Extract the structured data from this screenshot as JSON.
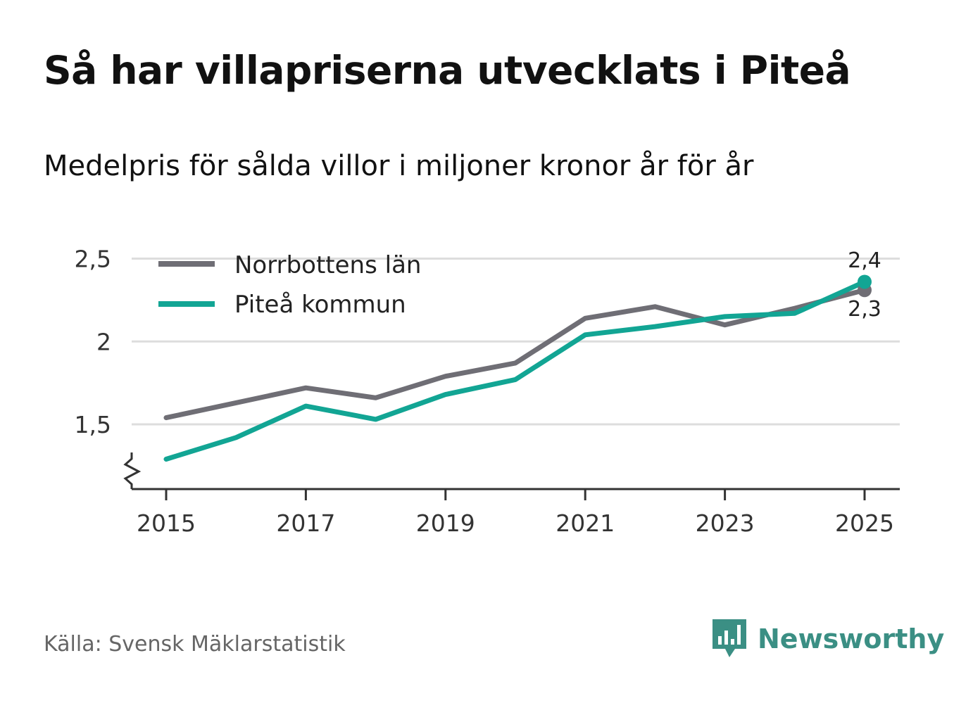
{
  "header": {
    "title": "Så har villapriserna utvecklats i Piteå",
    "subtitle": "Medelpris för sålda villor i miljoner kronor år för år"
  },
  "footer": {
    "source": "Källa: Svensk Mäklarstatistik",
    "brand": "Newsworthy",
    "brand_icon": "newsworthy-logo-icon"
  },
  "colors": {
    "norrbotten": "#6f6e75",
    "pitea": "#12a594",
    "grid": "#dddddd",
    "axis": "#333333",
    "brand": "#3b8f84"
  },
  "chart_data": {
    "type": "line",
    "title": "Så har villapriserna utvecklats i Piteå",
    "subtitle": "Medelpris för sålda villor i miljoner kronor år för år",
    "x": [
      2015,
      2016,
      2017,
      2018,
      2019,
      2020,
      2021,
      2022,
      2023,
      2024,
      2025
    ],
    "x_tick_labels": [
      "2015",
      "2017",
      "2019",
      "2021",
      "2023",
      "2025"
    ],
    "x_tick_values": [
      2015,
      2017,
      2019,
      2021,
      2023,
      2025
    ],
    "y_tick_labels": [
      "1,5",
      "2",
      "2,5"
    ],
    "y_tick_values": [
      1.5,
      2,
      2.5
    ],
    "ylim": [
      1.1,
      2.5
    ],
    "xlabel": "",
    "ylabel": "",
    "grid": true,
    "axis_break": true,
    "legend_position": "top-left",
    "series": [
      {
        "name": "Norrbottens län",
        "color": "#6f6e75",
        "values": [
          1.54,
          1.63,
          1.72,
          1.66,
          1.79,
          1.87,
          2.14,
          2.21,
          2.1,
          2.2,
          2.31
        ],
        "end_label": "2,3"
      },
      {
        "name": "Piteå kommun",
        "color": "#12a594",
        "values": [
          1.29,
          1.42,
          1.61,
          1.53,
          1.68,
          1.77,
          2.04,
          2.09,
          2.15,
          2.17,
          2.36
        ],
        "end_label": "2,4"
      }
    ]
  }
}
